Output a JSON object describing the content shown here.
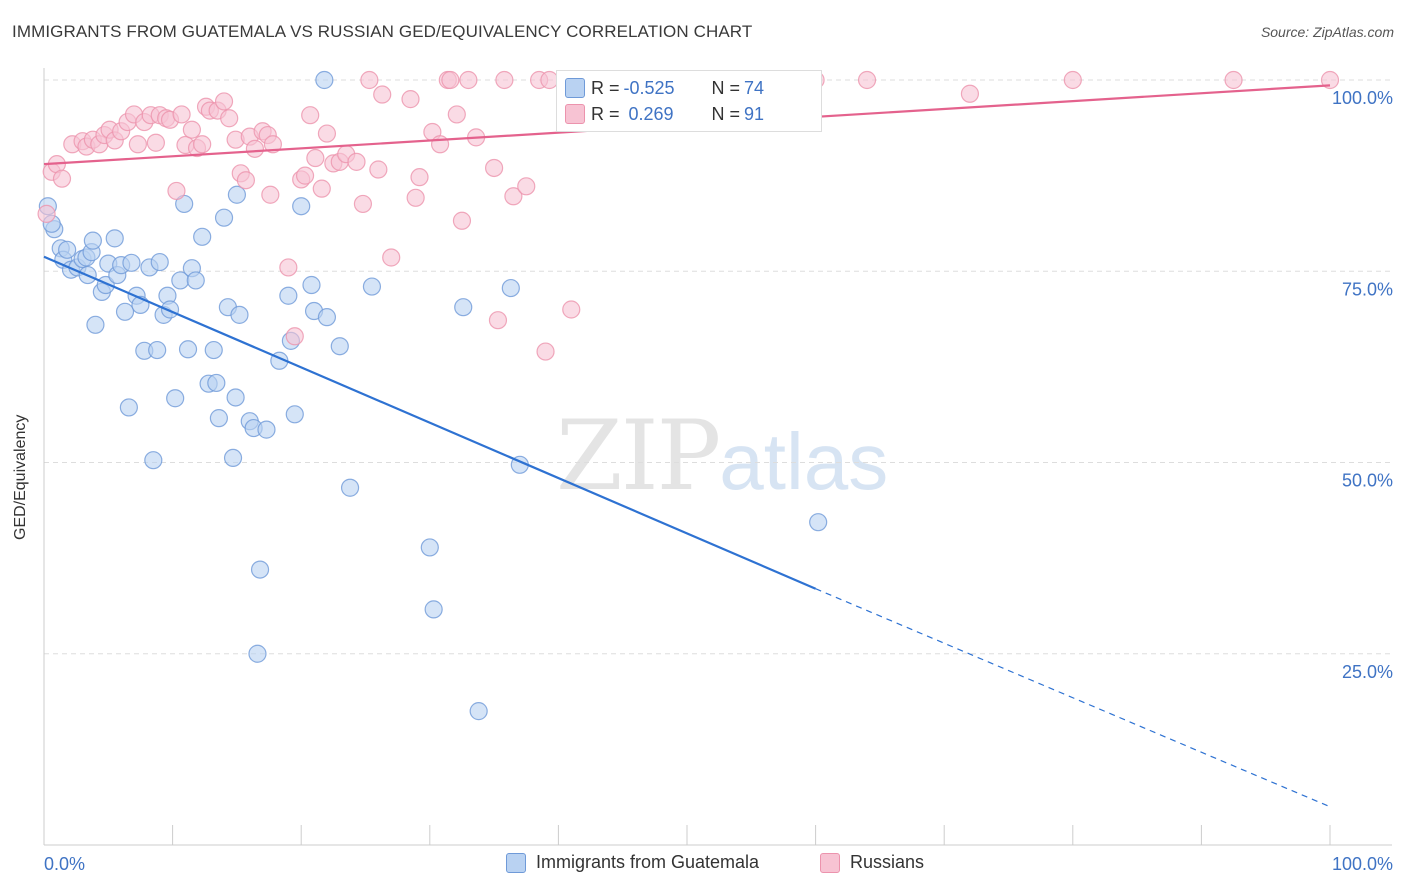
{
  "title": "IMMIGRANTS FROM GUATEMALA VS RUSSIAN GED/EQUIVALENCY CORRELATION CHART",
  "source": "Source: ZipAtlas.com",
  "watermark_a": "ZIP",
  "watermark_b": "atlas",
  "colors": {
    "blue_fill": "#b9d2f2",
    "blue_stroke": "#6f9ad8",
    "blue_line": "#2e72d2",
    "pink_fill": "#f7c3d3",
    "pink_stroke": "#ec93ad",
    "pink_line": "#e4628d",
    "tick_label": "#3f73c4",
    "grid": "#dddddd"
  },
  "stats": {
    "blue": {
      "r_label": "R = ",
      "r_value": "-0.525",
      "n_label": "N = ",
      "n_value": "74"
    },
    "pink": {
      "r_label": "R = ",
      "r_value": " 0.269",
      "n_label": "N = ",
      "n_value": "91"
    }
  },
  "chart_data": {
    "type": "scatter",
    "title": "IMMIGRANTS FROM GUATEMALA VS RUSSIAN GED/EQUIVALENCY CORRELATION CHART",
    "xlabel": "",
    "ylabel": "GED/Equivalency",
    "xlim": [
      0,
      100
    ],
    "ylim": [
      0,
      100
    ],
    "x_tick_labels": [
      "0.0%",
      "100.0%"
    ],
    "y_ticks": [
      25,
      50,
      75,
      100
    ],
    "y_tick_labels": [
      "25.0%",
      "50.0%",
      "75.0%",
      "100.0%"
    ],
    "grid": true,
    "legend_position": "bottom",
    "series": [
      {
        "name": "Immigrants from Guatemala",
        "color": "#b9d2f2",
        "trend": {
          "x": [
            0,
            60
          ],
          "y": [
            76.9,
            33.5
          ],
          "dashed_to": [
            100,
            5
          ]
        },
        "points": [
          [
            0.3,
            83.5
          ],
          [
            0.8,
            80.5
          ],
          [
            1.3,
            78
          ],
          [
            1.5,
            76.5
          ],
          [
            1.8,
            77.8
          ],
          [
            2.1,
            75.2
          ],
          [
            2.6,
            75.5
          ],
          [
            3.0,
            76.6
          ],
          [
            3.3,
            76.8
          ],
          [
            3.7,
            77.5
          ],
          [
            3.8,
            79
          ],
          [
            3.4,
            74.5
          ],
          [
            4.0,
            68
          ],
          [
            4.5,
            72.3
          ],
          [
            4.8,
            73.2
          ],
          [
            5.0,
            76
          ],
          [
            5.5,
            79.3
          ],
          [
            5.7,
            74.5
          ],
          [
            6.0,
            75.8
          ],
          [
            6.3,
            69.7
          ],
          [
            6.6,
            57.2
          ],
          [
            6.8,
            76.1
          ],
          [
            7.2,
            71.8
          ],
          [
            7.5,
            70.6
          ],
          [
            7.8,
            64.6
          ],
          [
            8.2,
            75.5
          ],
          [
            8.5,
            50.3
          ],
          [
            8.8,
            64.7
          ],
          [
            9.0,
            76.2
          ],
          [
            9.3,
            69.3
          ],
          [
            9.6,
            71.8
          ],
          [
            9.8,
            70
          ],
          [
            10.2,
            58.4
          ],
          [
            10.6,
            73.8
          ],
          [
            10.9,
            83.8
          ],
          [
            11.2,
            64.8
          ],
          [
            11.5,
            75.4
          ],
          [
            11.8,
            73.8
          ],
          [
            12.3,
            79.5
          ],
          [
            12.8,
            60.3
          ],
          [
            13.2,
            64.7
          ],
          [
            13.4,
            60.4
          ],
          [
            13.6,
            55.8
          ],
          [
            14.0,
            82
          ],
          [
            14.3,
            70.3
          ],
          [
            14.7,
            50.6
          ],
          [
            14.9,
            58.5
          ],
          [
            15.2,
            69.3
          ],
          [
            15.0,
            85
          ],
          [
            16.0,
            55.4
          ],
          [
            16.3,
            54.5
          ],
          [
            16.6,
            25
          ],
          [
            16.8,
            36
          ],
          [
            17.3,
            54.3
          ],
          [
            18.3,
            63.3
          ],
          [
            19.0,
            71.8
          ],
          [
            19.2,
            65.9
          ],
          [
            19.5,
            56.3
          ],
          [
            20.0,
            83.5
          ],
          [
            20.8,
            73.2
          ],
          [
            21.0,
            69.8
          ],
          [
            21.8,
            100
          ],
          [
            22.0,
            69
          ],
          [
            23.0,
            65.2
          ],
          [
            23.8,
            46.7
          ],
          [
            25.5,
            73
          ],
          [
            30.0,
            38.9
          ],
          [
            30.3,
            30.8
          ],
          [
            32.6,
            70.3
          ],
          [
            33.8,
            17.5
          ],
          [
            36.3,
            72.8
          ],
          [
            37.0,
            49.7
          ],
          [
            60.2,
            42.2
          ],
          [
            0.6,
            81.2
          ]
        ]
      },
      {
        "name": "Russians",
        "color": "#f7c3d3",
        "trend": {
          "x": [
            0,
            100
          ],
          "y": [
            89,
            99.3
          ]
        },
        "points": [
          [
            0.2,
            82.5
          ],
          [
            0.6,
            88
          ],
          [
            1.0,
            89
          ],
          [
            1.4,
            87.1
          ],
          [
            2.2,
            91.6
          ],
          [
            3.0,
            92
          ],
          [
            3.3,
            91.3
          ],
          [
            3.8,
            92.2
          ],
          [
            4.3,
            91.6
          ],
          [
            4.7,
            92.8
          ],
          [
            5.1,
            93.5
          ],
          [
            5.5,
            92.1
          ],
          [
            6.0,
            93.3
          ],
          [
            6.5,
            94.5
          ],
          [
            7.0,
            95.5
          ],
          [
            7.3,
            91.6
          ],
          [
            7.8,
            94.5
          ],
          [
            8.3,
            95.4
          ],
          [
            8.7,
            91.8
          ],
          [
            9.0,
            95.4
          ],
          [
            9.5,
            95
          ],
          [
            9.8,
            94.8
          ],
          [
            10.3,
            85.5
          ],
          [
            10.7,
            95.5
          ],
          [
            11.0,
            91.5
          ],
          [
            11.5,
            93.5
          ],
          [
            11.9,
            91.1
          ],
          [
            12.3,
            91.6
          ],
          [
            12.6,
            96.5
          ],
          [
            12.9,
            96
          ],
          [
            13.5,
            96
          ],
          [
            14.0,
            97.2
          ],
          [
            14.4,
            95
          ],
          [
            14.9,
            92.2
          ],
          [
            15.3,
            87.8
          ],
          [
            15.7,
            86.9
          ],
          [
            16.0,
            92.6
          ],
          [
            16.4,
            91
          ],
          [
            17.0,
            93.3
          ],
          [
            17.4,
            92.8
          ],
          [
            17.8,
            91.6
          ],
          [
            17.6,
            85
          ],
          [
            19.0,
            75.5
          ],
          [
            19.5,
            66.5
          ],
          [
            20.0,
            87
          ],
          [
            20.3,
            87.5
          ],
          [
            20.7,
            95.4
          ],
          [
            21.1,
            89.8
          ],
          [
            21.6,
            85.8
          ],
          [
            22.0,
            93
          ],
          [
            22.5,
            89.1
          ],
          [
            23.0,
            89.3
          ],
          [
            23.5,
            90.3
          ],
          [
            24.3,
            89.3
          ],
          [
            24.8,
            83.8
          ],
          [
            25.3,
            100
          ],
          [
            26.0,
            88.3
          ],
          [
            26.3,
            98.1
          ],
          [
            27.0,
            76.8
          ],
          [
            28.5,
            97.5
          ],
          [
            28.9,
            84.6
          ],
          [
            29.2,
            87.3
          ],
          [
            30.2,
            93.2
          ],
          [
            30.8,
            91.6
          ],
          [
            31.4,
            100
          ],
          [
            31.6,
            100
          ],
          [
            32.1,
            95.5
          ],
          [
            32.5,
            81.6
          ],
          [
            33.0,
            100
          ],
          [
            33.6,
            92.5
          ],
          [
            35.0,
            88.5
          ],
          [
            35.3,
            68.6
          ],
          [
            35.8,
            100
          ],
          [
            36.5,
            84.8
          ],
          [
            37.5,
            86.1
          ],
          [
            38.5,
            100
          ],
          [
            39.0,
            64.5
          ],
          [
            39.3,
            100
          ],
          [
            41.0,
            70
          ],
          [
            45.3,
            100
          ],
          [
            47.5,
            100
          ],
          [
            50.0,
            100
          ],
          [
            52.0,
            100
          ],
          [
            54.0,
            100
          ],
          [
            56.0,
            100
          ],
          [
            60.0,
            100
          ],
          [
            64.0,
            100
          ],
          [
            72.0,
            98.2
          ],
          [
            80.0,
            100
          ],
          [
            92.5,
            100
          ],
          [
            100.0,
            100
          ]
        ]
      }
    ]
  }
}
